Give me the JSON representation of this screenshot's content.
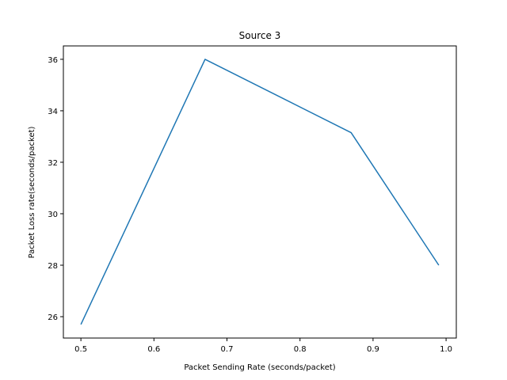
{
  "chart_data": {
    "type": "line",
    "title": "Source 3",
    "xlabel": "Packet Sending Rate (seconds/packet)",
    "ylabel": "Packet Loss rate(seconds/packet)",
    "xlim": [
      0.476,
      1.014
    ],
    "ylim": [
      25.17,
      36.52
    ],
    "xticks": [
      0.5,
      0.6,
      0.7,
      0.8,
      0.9,
      1.0
    ],
    "xtick_labels": [
      "0.5",
      "0.6",
      "0.7",
      "0.8",
      "0.9",
      "1.0"
    ],
    "yticks": [
      26,
      28,
      30,
      32,
      34,
      36
    ],
    "ytick_labels": [
      "26",
      "28",
      "30",
      "32",
      "34",
      "36"
    ],
    "grid": false,
    "series": [
      {
        "color": "#1f77b4",
        "x": [
          0.5,
          0.67,
          0.87,
          0.99
        ],
        "y": [
          25.7,
          36.0,
          33.15,
          28.0
        ]
      }
    ]
  }
}
